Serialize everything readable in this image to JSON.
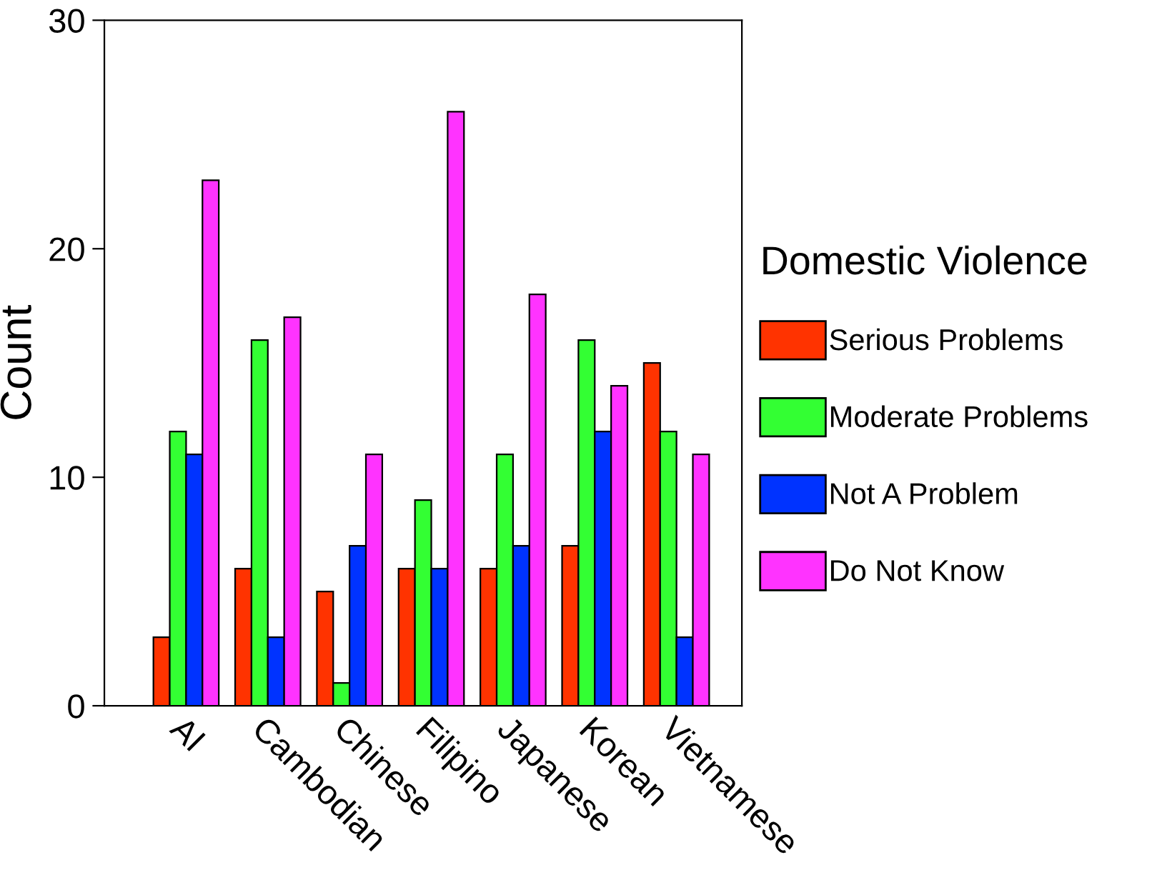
{
  "chart_data": {
    "type": "bar",
    "ylabel": "Count",
    "legend_title": "Domestic Violence",
    "categories": [
      "AI",
      "Cambodian",
      "Chinese",
      "Filipino",
      "Japanese",
      "Korean",
      "Vietnamese"
    ],
    "series": [
      {
        "name": "Serious Problems",
        "color": "#ff3300",
        "values": [
          3,
          6,
          5,
          6,
          6,
          7,
          15
        ]
      },
      {
        "name": "Moderate Problems",
        "color": "#33ff33",
        "values": [
          12,
          16,
          1,
          9,
          11,
          16,
          12
        ]
      },
      {
        "name": "Not A Problem",
        "color": "#0033ff",
        "values": [
          11,
          3,
          7,
          6,
          7,
          12,
          3
        ]
      },
      {
        "name": "Do Not Know",
        "color": "#ff33ff",
        "values": [
          23,
          17,
          11,
          26,
          18,
          14,
          11
        ]
      }
    ],
    "ylim": [
      0,
      30
    ],
    "yticks": [
      0,
      10,
      20,
      30
    ],
    "grid": false,
    "legend": "right"
  }
}
